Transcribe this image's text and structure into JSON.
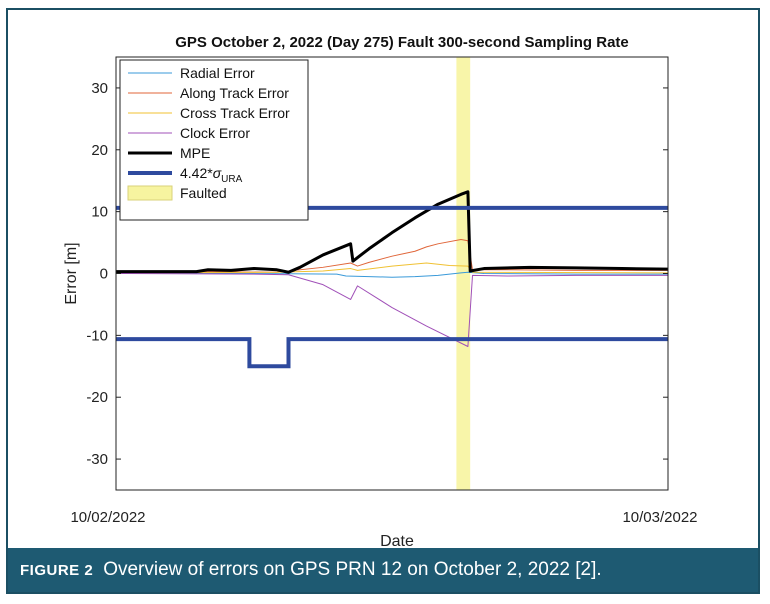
{
  "figure": {
    "label": "FIGURE 2",
    "caption": "Overview of errors on GPS PRN 12 on October 2, 2022 [2].",
    "colors": {
      "caption_bg": "#1e5a72",
      "border": "#1b4f63"
    }
  },
  "chart_data": {
    "type": "line",
    "title": "GPS October 2, 2022 (Day 275) Fault 300-second Sampling Rate",
    "xlabel": "Date",
    "ylabel": "Error [m]",
    "x_tick_labels": [
      "10/02/2022",
      "10/03/2022"
    ],
    "xlim": [
      0,
      24
    ],
    "ylim": [
      -35,
      35
    ],
    "y_ticks": [
      -30,
      -20,
      -10,
      0,
      10,
      20,
      30
    ],
    "legend_position": "top-left",
    "grid": false,
    "fault_window": {
      "start": 14.8,
      "end": 15.4,
      "color": "#f7f4a0",
      "label": "Faulted"
    },
    "series": [
      {
        "name": "Radial Error",
        "color": "#3a9ad9",
        "width": 1,
        "x": [
          0,
          6,
          9.6,
          10,
          11,
          12,
          13,
          14,
          15,
          15.3,
          16,
          20,
          24
        ],
        "y": [
          0.1,
          0.0,
          -0.1,
          -0.4,
          -0.5,
          -0.6,
          -0.5,
          -0.3,
          0.1,
          0.2,
          0.0,
          -0.1,
          -0.1
        ]
      },
      {
        "name": "Along Track Error",
        "color": "#e0663a",
        "width": 1,
        "x": [
          0,
          4,
          7,
          9,
          10.2,
          10.5,
          11,
          12,
          13,
          13.5,
          14,
          15,
          15.3,
          15.5,
          17,
          20,
          24
        ],
        "y": [
          0.2,
          0.3,
          0.2,
          1.0,
          1.7,
          1.2,
          1.8,
          2.8,
          3.6,
          4.3,
          4.8,
          5.5,
          5.3,
          0.6,
          0.6,
          0.5,
          0.5
        ]
      },
      {
        "name": "Cross Track Error",
        "color": "#f0c132",
        "width": 1,
        "x": [
          0,
          7,
          9,
          10.2,
          10.5,
          12,
          13.5,
          14.5,
          15.3,
          15.5,
          24
        ],
        "y": [
          0.1,
          0.2,
          0.4,
          0.8,
          0.5,
          1.2,
          1.7,
          1.3,
          1.2,
          0.2,
          0.1
        ]
      },
      {
        "name": "Clock Error",
        "color": "#a050b8",
        "width": 1,
        "x": [
          0,
          6,
          7.5,
          9,
          10.2,
          10.5,
          12,
          13.5,
          15.3,
          15.5,
          17,
          20,
          24
        ],
        "y": [
          0,
          -0.1,
          -0.2,
          -1.8,
          -4.2,
          -2.0,
          -5.5,
          -8.5,
          -11.8,
          -0.3,
          -0.4,
          -0.3,
          -0.3
        ]
      },
      {
        "name": "MPE",
        "color": "#000000",
        "width": 3,
        "x": [
          0,
          3.5,
          4,
          5,
          6,
          7,
          7.5,
          8,
          9,
          10.2,
          10.3,
          11,
          12,
          13,
          14,
          15,
          15.3,
          15.4,
          16,
          18,
          20,
          22,
          24
        ],
        "y": [
          0.3,
          0.3,
          0.6,
          0.5,
          0.8,
          0.6,
          0.2,
          1.0,
          3.0,
          4.8,
          2.0,
          4.0,
          6.6,
          9.0,
          11.2,
          12.8,
          13.2,
          0.4,
          0.8,
          1.0,
          0.9,
          0.8,
          0.7
        ]
      },
      {
        "name": "4.42*σ_URA",
        "color": "#2e4a9e",
        "width": 4,
        "band": true,
        "upper": {
          "x": [
            0,
            24
          ],
          "y": [
            10.6,
            10.6
          ]
        },
        "lower": {
          "x": [
            0,
            5.8,
            5.8,
            7.5,
            7.5,
            24
          ],
          "y": [
            -10.6,
            -10.6,
            -15,
            -15,
            -10.6,
            -10.6
          ]
        }
      }
    ]
  }
}
